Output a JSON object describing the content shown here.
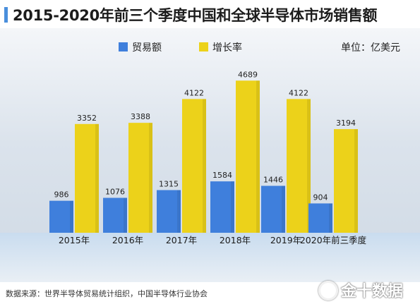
{
  "title": "2015-2020年前三个季度中国和全球半导体市场销售额",
  "unit_label": "单位：亿美元",
  "source": "数据来源：世界半导体贸易统计组织，中国半导体行业协会",
  "watermark": "金十数据",
  "colors": {
    "trade": "#3f7fdc",
    "growth": "#ecd21a",
    "accent": "#4a8fdc"
  },
  "chart_data": {
    "type": "bar",
    "categories": [
      "2015年",
      "2016年",
      "2017年",
      "2018年",
      "2019年",
      "2020年前三季度"
    ],
    "series": [
      {
        "name": "贸易额",
        "values": [
          986,
          1076,
          1315,
          1584,
          1446,
          904
        ]
      },
      {
        "name": "增长率",
        "values": [
          3352,
          3388,
          4122,
          4689,
          4122,
          3194
        ]
      }
    ],
    "ylim": [
      0,
      5000
    ],
    "legend_position": "top",
    "grid": false
  }
}
